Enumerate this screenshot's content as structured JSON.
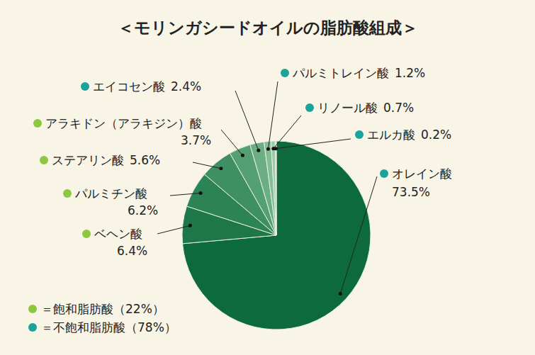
{
  "chart_data": {
    "type": "pie",
    "title": "＜モリンガシードオイルの脂肪酸組成＞",
    "categories": [
      "オレイン酸",
      "ベヘン酸",
      "パルミチン酸",
      "ステアリン酸",
      "アラキドン（アラキジン）酸",
      "エイコセン酸",
      "パルミトレイン酸",
      "リノール酸",
      "エルカ酸"
    ],
    "values": [
      73.5,
      6.4,
      6.2,
      5.6,
      3.7,
      2.4,
      1.2,
      0.7,
      0.2
    ],
    "value_labels": [
      "73.5%",
      "6.4%",
      "6.2%",
      "5.6%",
      "3.7%",
      "2.4%",
      "1.2%",
      "0.7%",
      "0.2%"
    ],
    "colors": [
      "#0d6b3b",
      "#1d7746",
      "#2c8353",
      "#3e8f61",
      "#55a072",
      "#6bae84",
      "#83bd96",
      "#9acaa9",
      "#b0d6bb"
    ],
    "data_labels": true,
    "legend": "bottom-left",
    "groups": [
      {
        "label": "＝飽和脂肪酸（22%）",
        "color": "#8dc63f",
        "members": [
          "ベヘン酸",
          "パルミチン酸",
          "ステアリン酸",
          "アラキドン（アラキジン）酸"
        ]
      },
      {
        "label": "＝不飽和脂肪酸（78%）",
        "color": "#1aa39a",
        "members": [
          "オレイン酸",
          "エイコセン酸",
          "パルミトレイン酸",
          "リノール酸",
          "エルカ酸"
        ]
      }
    ]
  }
}
